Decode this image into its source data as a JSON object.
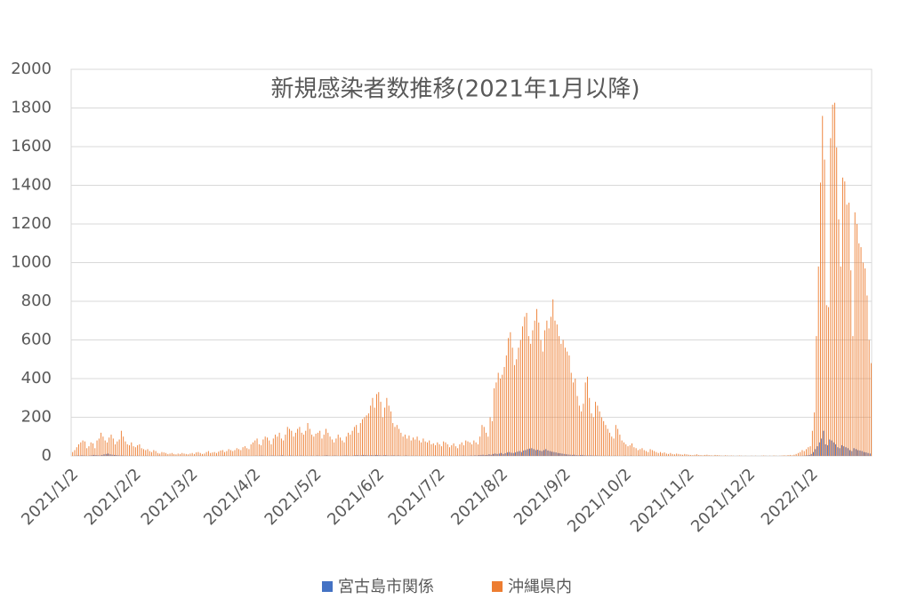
{
  "chart_data": {
    "type": "bar",
    "title": "新規感染者数推移(2021年1月以降)",
    "categories": [
      "2021/1/2",
      null,
      null,
      null,
      null,
      null,
      null,
      null,
      null,
      null,
      null,
      null,
      null,
      null,
      null,
      null,
      null,
      null,
      null,
      null,
      null,
      null,
      null,
      null,
      null,
      null,
      null,
      null,
      null,
      null,
      null,
      "2021/2/2",
      null,
      null,
      null,
      null,
      null,
      null,
      null,
      null,
      null,
      null,
      null,
      null,
      null,
      null,
      null,
      null,
      null,
      null,
      null,
      null,
      null,
      null,
      null,
      null,
      null,
      null,
      null,
      "2021/3/2",
      null,
      null,
      null,
      null,
      null,
      null,
      null,
      null,
      null,
      null,
      null,
      null,
      null,
      null,
      null,
      null,
      null,
      null,
      null,
      null,
      null,
      null,
      null,
      null,
      null,
      null,
      null,
      null,
      null,
      null,
      "2021/4/2",
      null,
      null,
      null,
      null,
      null,
      null,
      null,
      null,
      null,
      null,
      null,
      null,
      null,
      null,
      null,
      null,
      null,
      null,
      null,
      null,
      null,
      null,
      null,
      null,
      null,
      null,
      null,
      null,
      null,
      "2021/5/2",
      null,
      null,
      null,
      null,
      null,
      null,
      null,
      null,
      null,
      null,
      null,
      null,
      null,
      null,
      null,
      null,
      null,
      null,
      null,
      null,
      null,
      null,
      null,
      null,
      null,
      null,
      null,
      null,
      null,
      null,
      "2021/6/2",
      null,
      null,
      null,
      null,
      null,
      null,
      null,
      null,
      null,
      null,
      null,
      null,
      null,
      null,
      null,
      null,
      null,
      null,
      null,
      null,
      null,
      null,
      null,
      null,
      null,
      null,
      null,
      null,
      null,
      "2021/7/2",
      null,
      null,
      null,
      null,
      null,
      null,
      null,
      null,
      null,
      null,
      null,
      null,
      null,
      null,
      null,
      null,
      null,
      null,
      null,
      null,
      null,
      null,
      null,
      null,
      null,
      null,
      null,
      null,
      null,
      null,
      "2021/8/2",
      null,
      null,
      null,
      null,
      null,
      null,
      null,
      null,
      null,
      null,
      null,
      null,
      null,
      null,
      null,
      null,
      null,
      null,
      null,
      null,
      null,
      null,
      null,
      null,
      null,
      null,
      null,
      null,
      null,
      null,
      "2021/9/2",
      null,
      null,
      null,
      null,
      null,
      null,
      null,
      null,
      null,
      null,
      null,
      null,
      null,
      null,
      null,
      null,
      null,
      null,
      null,
      null,
      null,
      null,
      null,
      null,
      null,
      null,
      null,
      null,
      null,
      "2021/10/2",
      null,
      null,
      null,
      null,
      null,
      null,
      null,
      null,
      null,
      null,
      null,
      null,
      null,
      null,
      null,
      null,
      null,
      null,
      null,
      null,
      null,
      null,
      null,
      null,
      null,
      null,
      null,
      null,
      null,
      null,
      "2021/11/2",
      null,
      null,
      null,
      null,
      null,
      null,
      null,
      null,
      null,
      null,
      null,
      null,
      null,
      null,
      null,
      null,
      null,
      null,
      null,
      null,
      null,
      null,
      null,
      null,
      null,
      null,
      null,
      null,
      null,
      "2021/12/2",
      null,
      null,
      null,
      null,
      null,
      null,
      null,
      null,
      null,
      null,
      null,
      null,
      null,
      null,
      null,
      null,
      null,
      null,
      null,
      null,
      null,
      null,
      null,
      null,
      null,
      null,
      null,
      null,
      null,
      null,
      "2022/1/2",
      null,
      null,
      null,
      null,
      null,
      null,
      null,
      null,
      null,
      null,
      null,
      null,
      null,
      null,
      null,
      null,
      null,
      null,
      null,
      null,
      null,
      null,
      null,
      null,
      null,
      null,
      null,
      null,
      null
    ],
    "series": [
      {
        "name": "宮古島市関係",
        "color": "#4472c4",
        "values": [
          0,
          0,
          1,
          2,
          1,
          3,
          2,
          1,
          0,
          2,
          3,
          5,
          4,
          3,
          2,
          5,
          8,
          10,
          12,
          8,
          6,
          5,
          4,
          3,
          2,
          2,
          1,
          1,
          0,
          1,
          1,
          0,
          0,
          1,
          0,
          0,
          0,
          1,
          0,
          0,
          0,
          0,
          0,
          1,
          0,
          0,
          0,
          0,
          0,
          0,
          0,
          0,
          0,
          0,
          0,
          0,
          0,
          0,
          0,
          0,
          0,
          0,
          0,
          1,
          0,
          0,
          0,
          0,
          0,
          0,
          0,
          0,
          0,
          0,
          0,
          1,
          0,
          0,
          0,
          0,
          0,
          0,
          0,
          0,
          0,
          0,
          0,
          0,
          0,
          0,
          0,
          1,
          0,
          1,
          2,
          1,
          0,
          0,
          1,
          2,
          1,
          0,
          1,
          2,
          3,
          1,
          0,
          1,
          2,
          1,
          0,
          1,
          0,
          2,
          1,
          0,
          1,
          0,
          1,
          1,
          0,
          2,
          1,
          0,
          1,
          2,
          3,
          1,
          0,
          1,
          2,
          1,
          0,
          1,
          2,
          3,
          2,
          1,
          0,
          2,
          3,
          4,
          2,
          3,
          5,
          4,
          3,
          2,
          4,
          3,
          5,
          4,
          3,
          2,
          3,
          4,
          2,
          1,
          2,
          3,
          1,
          2,
          1,
          0,
          1,
          2,
          1,
          0,
          1,
          0,
          1,
          0,
          0,
          1,
          0,
          0,
          1,
          0,
          0,
          1,
          0,
          0,
          1,
          0,
          1,
          0,
          0,
          1,
          0,
          0,
          1,
          0,
          1,
          2,
          1,
          0,
          1,
          2,
          1,
          3,
          2,
          4,
          5,
          6,
          4,
          5,
          8,
          6,
          10,
          12,
          10,
          12,
          15,
          10,
          14,
          18,
          20,
          16,
          15,
          18,
          22,
          25,
          20,
          28,
          30,
          35,
          38,
          40,
          35,
          30,
          32,
          28,
          25,
          30,
          35,
          28,
          25,
          22,
          20,
          18,
          15,
          14,
          12,
          10,
          8,
          7,
          6,
          5,
          6,
          4,
          3,
          4,
          5,
          3,
          2,
          2,
          3,
          2,
          1,
          2,
          1,
          1,
          0,
          1,
          0,
          1,
          0,
          0,
          1,
          0,
          0,
          0,
          0,
          1,
          0,
          0,
          1,
          0,
          0,
          0,
          1,
          0,
          0,
          0,
          0,
          0,
          0,
          0,
          0,
          0,
          0,
          0,
          0,
          0,
          0,
          0,
          0,
          0,
          0,
          0,
          0,
          0,
          0,
          0,
          0,
          0,
          0,
          0,
          0,
          0,
          0,
          0,
          0,
          0,
          0,
          0,
          0,
          0,
          0,
          0,
          0,
          0,
          0,
          0,
          0,
          0,
          0,
          0,
          0,
          0,
          0,
          0,
          0,
          0,
          0,
          0,
          0,
          0,
          0,
          0,
          0,
          0,
          0,
          0,
          0,
          0,
          0,
          0,
          0,
          0,
          0,
          0,
          0,
          0,
          0,
          0,
          0,
          0,
          0,
          0,
          0,
          1,
          2,
          3,
          5,
          10,
          20,
          35,
          50,
          70,
          90,
          130,
          60,
          55,
          85,
          80,
          70,
          60,
          45,
          40,
          55,
          50,
          45,
          40,
          30,
          25,
          40,
          35,
          30,
          28,
          25,
          20,
          18,
          15,
          12
        ]
      },
      {
        "name": "沖縄県内",
        "color": "#ed7d31",
        "values": [
          20,
          30,
          45,
          60,
          70,
          80,
          75,
          40,
          50,
          70,
          65,
          40,
          80,
          90,
          120,
          100,
          80,
          70,
          95,
          110,
          90,
          60,
          75,
          85,
          130,
          100,
          75,
          60,
          55,
          70,
          50,
          45,
          55,
          60,
          40,
          35,
          30,
          35,
          25,
          20,
          30,
          25,
          15,
          12,
          20,
          18,
          15,
          10,
          12,
          15,
          10,
          8,
          12,
          10,
          15,
          12,
          10,
          8,
          12,
          15,
          10,
          18,
          20,
          15,
          10,
          12,
          20,
          25,
          15,
          18,
          20,
          15,
          22,
          28,
          30,
          20,
          25,
          35,
          30,
          25,
          30,
          40,
          35,
          30,
          45,
          50,
          40,
          35,
          60,
          70,
          80,
          90,
          60,
          55,
          85,
          100,
          95,
          80,
          60,
          90,
          110,
          100,
          120,
          90,
          80,
          110,
          150,
          140,
          130,
          100,
          120,
          140,
          150,
          120,
          110,
          130,
          170,
          140,
          110,
          100,
          115,
          120,
          130,
          90,
          110,
          140,
          120,
          100,
          85,
          70,
          90,
          110,
          95,
          80,
          70,
          100,
          120,
          110,
          130,
          150,
          160,
          120,
          170,
          190,
          200,
          210,
          220,
          260,
          300,
          250,
          320,
          330,
          280,
          200,
          250,
          300,
          260,
          230,
          170,
          150,
          160,
          140,
          120,
          100,
          110,
          90,
          105,
          80,
          95,
          85,
          100,
          80,
          70,
          90,
          75,
          70,
          80,
          60,
          65,
          55,
          70,
          60,
          50,
          75,
          70,
          60,
          45,
          55,
          65,
          50,
          40,
          60,
          70,
          55,
          80,
          75,
          70,
          60,
          80,
          70,
          60,
          100,
          160,
          150,
          120,
          100,
          200,
          180,
          350,
          380,
          430,
          400,
          420,
          460,
          520,
          610,
          640,
          560,
          470,
          500,
          560,
          600,
          670,
          720,
          740,
          620,
          580,
          650,
          700,
          760,
          690,
          600,
          540,
          650,
          700,
          660,
          720,
          810,
          700,
          680,
          620,
          580,
          600,
          560,
          540,
          520,
          430,
          380,
          400,
          310,
          260,
          230,
          270,
          380,
          410,
          300,
          220,
          200,
          280,
          260,
          230,
          200,
          180,
          160,
          140,
          120,
          100,
          90,
          160,
          140,
          110,
          80,
          70,
          60,
          50,
          55,
          65,
          45,
          40,
          30,
          35,
          40,
          30,
          25,
          20,
          35,
          30,
          25,
          20,
          15,
          20,
          15,
          18,
          12,
          10,
          15,
          10,
          8,
          12,
          10,
          8,
          6,
          10,
          8,
          6,
          5,
          4,
          6,
          8,
          5,
          4,
          3,
          5,
          6,
          4,
          3,
          2,
          5,
          4,
          3,
          2,
          1,
          3,
          2,
          1,
          2,
          1,
          0,
          1,
          2,
          1,
          0,
          1,
          0,
          0,
          1,
          0,
          1,
          0,
          0,
          1,
          2,
          1,
          0,
          1,
          0,
          2,
          1,
          0,
          1,
          2,
          3,
          2,
          4,
          5,
          3,
          6,
          10,
          15,
          20,
          30,
          25,
          35,
          45,
          50,
          130,
          225,
          620,
          980,
          1414,
          1759,
          1533,
          780,
          770,
          1644,
          1817,
          1827,
          1596,
          1224,
          980,
          1440,
          1420,
          1300,
          1310,
          960,
          620,
          1260,
          1200,
          1100,
          1080,
          1000,
          970,
          830,
          600,
          480
        ]
      }
    ],
    "ylim": [
      0,
      2000
    ],
    "yticks": [
      0,
      200,
      400,
      600,
      800,
      1000,
      1200,
      1400,
      1600,
      1800,
      2000
    ],
    "grid": true
  }
}
